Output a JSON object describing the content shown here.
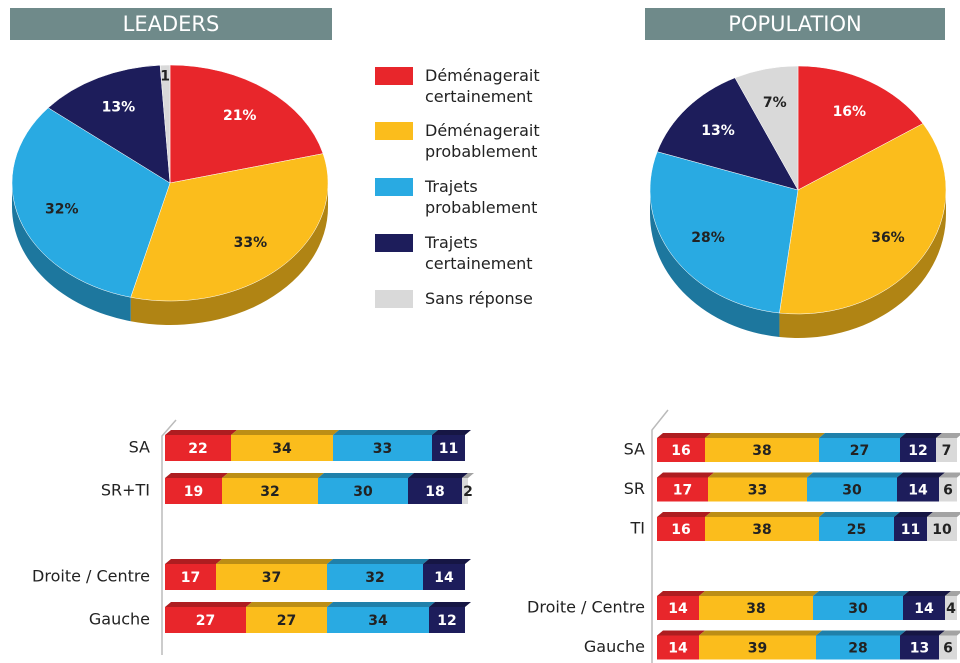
{
  "chart_data": [
    {
      "type": "pie",
      "title": "LEADERS",
      "values": [
        21,
        33,
        32,
        13,
        1
      ],
      "value_labels": [
        "21%",
        "33%",
        "32%",
        "13%",
        "1"
      ],
      "colors": [
        "#e8262b",
        "#fbbd1c",
        "#29aae2",
        "#1d1d5b",
        "#d9d9d9"
      ]
    },
    {
      "type": "pie",
      "title": "POPULATION",
      "values": [
        16,
        36,
        28,
        13,
        7
      ],
      "value_labels": [
        "16%",
        "36%",
        "28%",
        "13%",
        "7%"
      ],
      "colors": [
        "#e8262b",
        "#fbbd1c",
        "#29aae2",
        "#1d1d5b",
        "#d9d9d9"
      ]
    },
    {
      "type": "stacked_bar_horizontal",
      "categories": [
        "SA",
        "SR+TI",
        null,
        "Droite / Centre",
        "Gauche"
      ],
      "xlim": [
        0,
        100
      ],
      "series": [
        {
          "name": "Déménagerait certainement",
          "color": "#e8262b",
          "values": [
            22,
            19,
            null,
            17,
            27
          ]
        },
        {
          "name": "Déménagerait probablement",
          "color": "#fbbd1c",
          "values": [
            34,
            32,
            null,
            37,
            27
          ]
        },
        {
          "name": "Trajets probablement",
          "color": "#29aae2",
          "values": [
            33,
            30,
            null,
            32,
            34
          ]
        },
        {
          "name": "Trajets certainement",
          "color": "#1d1d5b",
          "values": [
            11,
            18,
            null,
            14,
            12
          ]
        },
        {
          "name": "Sans réponse",
          "color": "#d9d9d9",
          "values": [
            null,
            2,
            null,
            null,
            null
          ]
        }
      ]
    },
    {
      "type": "stacked_bar_horizontal",
      "categories": [
        "SA",
        "SR",
        "TI",
        null,
        "Droite / Centre",
        "Gauche"
      ],
      "xlim": [
        0,
        100
      ],
      "series": [
        {
          "name": "Déménagerait certainement",
          "color": "#e8262b",
          "values": [
            16,
            17,
            16,
            null,
            14,
            14
          ]
        },
        {
          "name": "Déménagerait probablement",
          "color": "#fbbd1c",
          "values": [
            38,
            33,
            38,
            null,
            38,
            39
          ]
        },
        {
          "name": "Trajets probablement",
          "color": "#29aae2",
          "values": [
            27,
            30,
            25,
            null,
            30,
            28
          ]
        },
        {
          "name": "Trajets certainement",
          "color": "#1d1d5b",
          "values": [
            12,
            14,
            11,
            null,
            14,
            13
          ]
        },
        {
          "name": "Sans réponse",
          "color": "#d9d9d9",
          "values": [
            7,
            6,
            10,
            null,
            4,
            6
          ]
        }
      ]
    }
  ]
}
